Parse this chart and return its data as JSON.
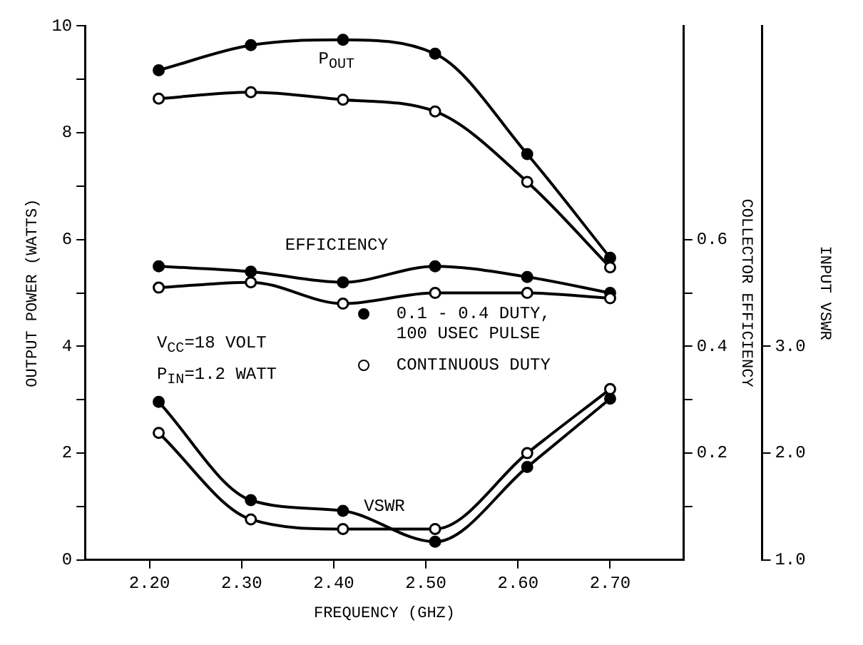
{
  "chart_data": {
    "type": "line",
    "xlabel": "FREQUENCY (GHZ)",
    "ylabel": "OUTPUT POWER (WATTS)",
    "y2label": "COLLECTOR EFFICIENCY",
    "y3label": "INPUT VSWR",
    "x": [
      2.21,
      2.31,
      2.41,
      2.51,
      2.61,
      2.7
    ],
    "xlim": [
      2.13,
      2.78
    ],
    "xticks": [
      {
        "value": 2.2,
        "label": "2.20"
      },
      {
        "value": 2.3,
        "label": "2.30"
      },
      {
        "value": 2.4,
        "label": "2.40"
      },
      {
        "value": 2.5,
        "label": "2.50"
      },
      {
        "value": 2.6,
        "label": "2.60"
      },
      {
        "value": 2.7,
        "label": "2.70"
      }
    ],
    "ylim": [
      0,
      10
    ],
    "yticks": [
      0,
      {
        "value": 1,
        "label": null
      },
      2,
      {
        "value": 3,
        "label": null
      },
      4,
      {
        "value": 5,
        "label": null
      },
      6,
      {
        "value": 7,
        "label": null
      },
      8,
      {
        "value": 9,
        "label": null
      },
      10
    ],
    "y2lim": [
      0,
      1
    ],
    "y2ticks": [
      {
        "value": 0.1,
        "label": null
      },
      0.2,
      {
        "value": 0.3,
        "label": null
      },
      0.4,
      {
        "value": 0.5,
        "label": null
      },
      0.6
    ],
    "y3lim": [
      1,
      6
    ],
    "y3ticks": [
      {
        "value": 1,
        "label": "1.0"
      },
      {
        "value": 2,
        "label": "2.0"
      },
      {
        "value": 3,
        "label": "3.0"
      }
    ],
    "series": [
      {
        "name": "0.1 - 0.4 DUTY, 100 USEC PULSE",
        "color": "#000000",
        "values": [
          9.17,
          9.64,
          9.74,
          9.48,
          7.6,
          5.66
        ]
      },
      {
        "name": "CONTINUOUS DUTY",
        "color": "#000000",
        "values": [
          8.64,
          8.76,
          8.62,
          8.4,
          7.08,
          5.48
        ]
      },
      {
        "color": "#000000",
        "axis": "y2",
        "values": [
          0.55,
          0.54,
          0.52,
          0.55,
          0.53,
          0.5
        ]
      },
      {
        "color": "#000000",
        "axis": "y2",
        "values": [
          0.51,
          0.52,
          0.48,
          0.5,
          0.5,
          0.49
        ]
      },
      {
        "color": "#000000",
        "axis": "y3",
        "values": [
          2.48,
          1.56,
          1.46,
          1.17,
          1.87,
          2.51
        ]
      },
      {
        "color": "#000000",
        "axis": "y3",
        "values": [
          2.19,
          1.38,
          1.29,
          1.29,
          2.0,
          2.6
        ]
      }
    ],
    "annotations": [
      "P$_{OUT}$",
      "EFFICIENCY",
      "VSWR",
      "V$_{CC}$=18 VOLT",
      "P$_{IN}$=1.2 WATT"
    ],
    "marker": "circle",
    "legend": "center",
    "grid": false
  }
}
